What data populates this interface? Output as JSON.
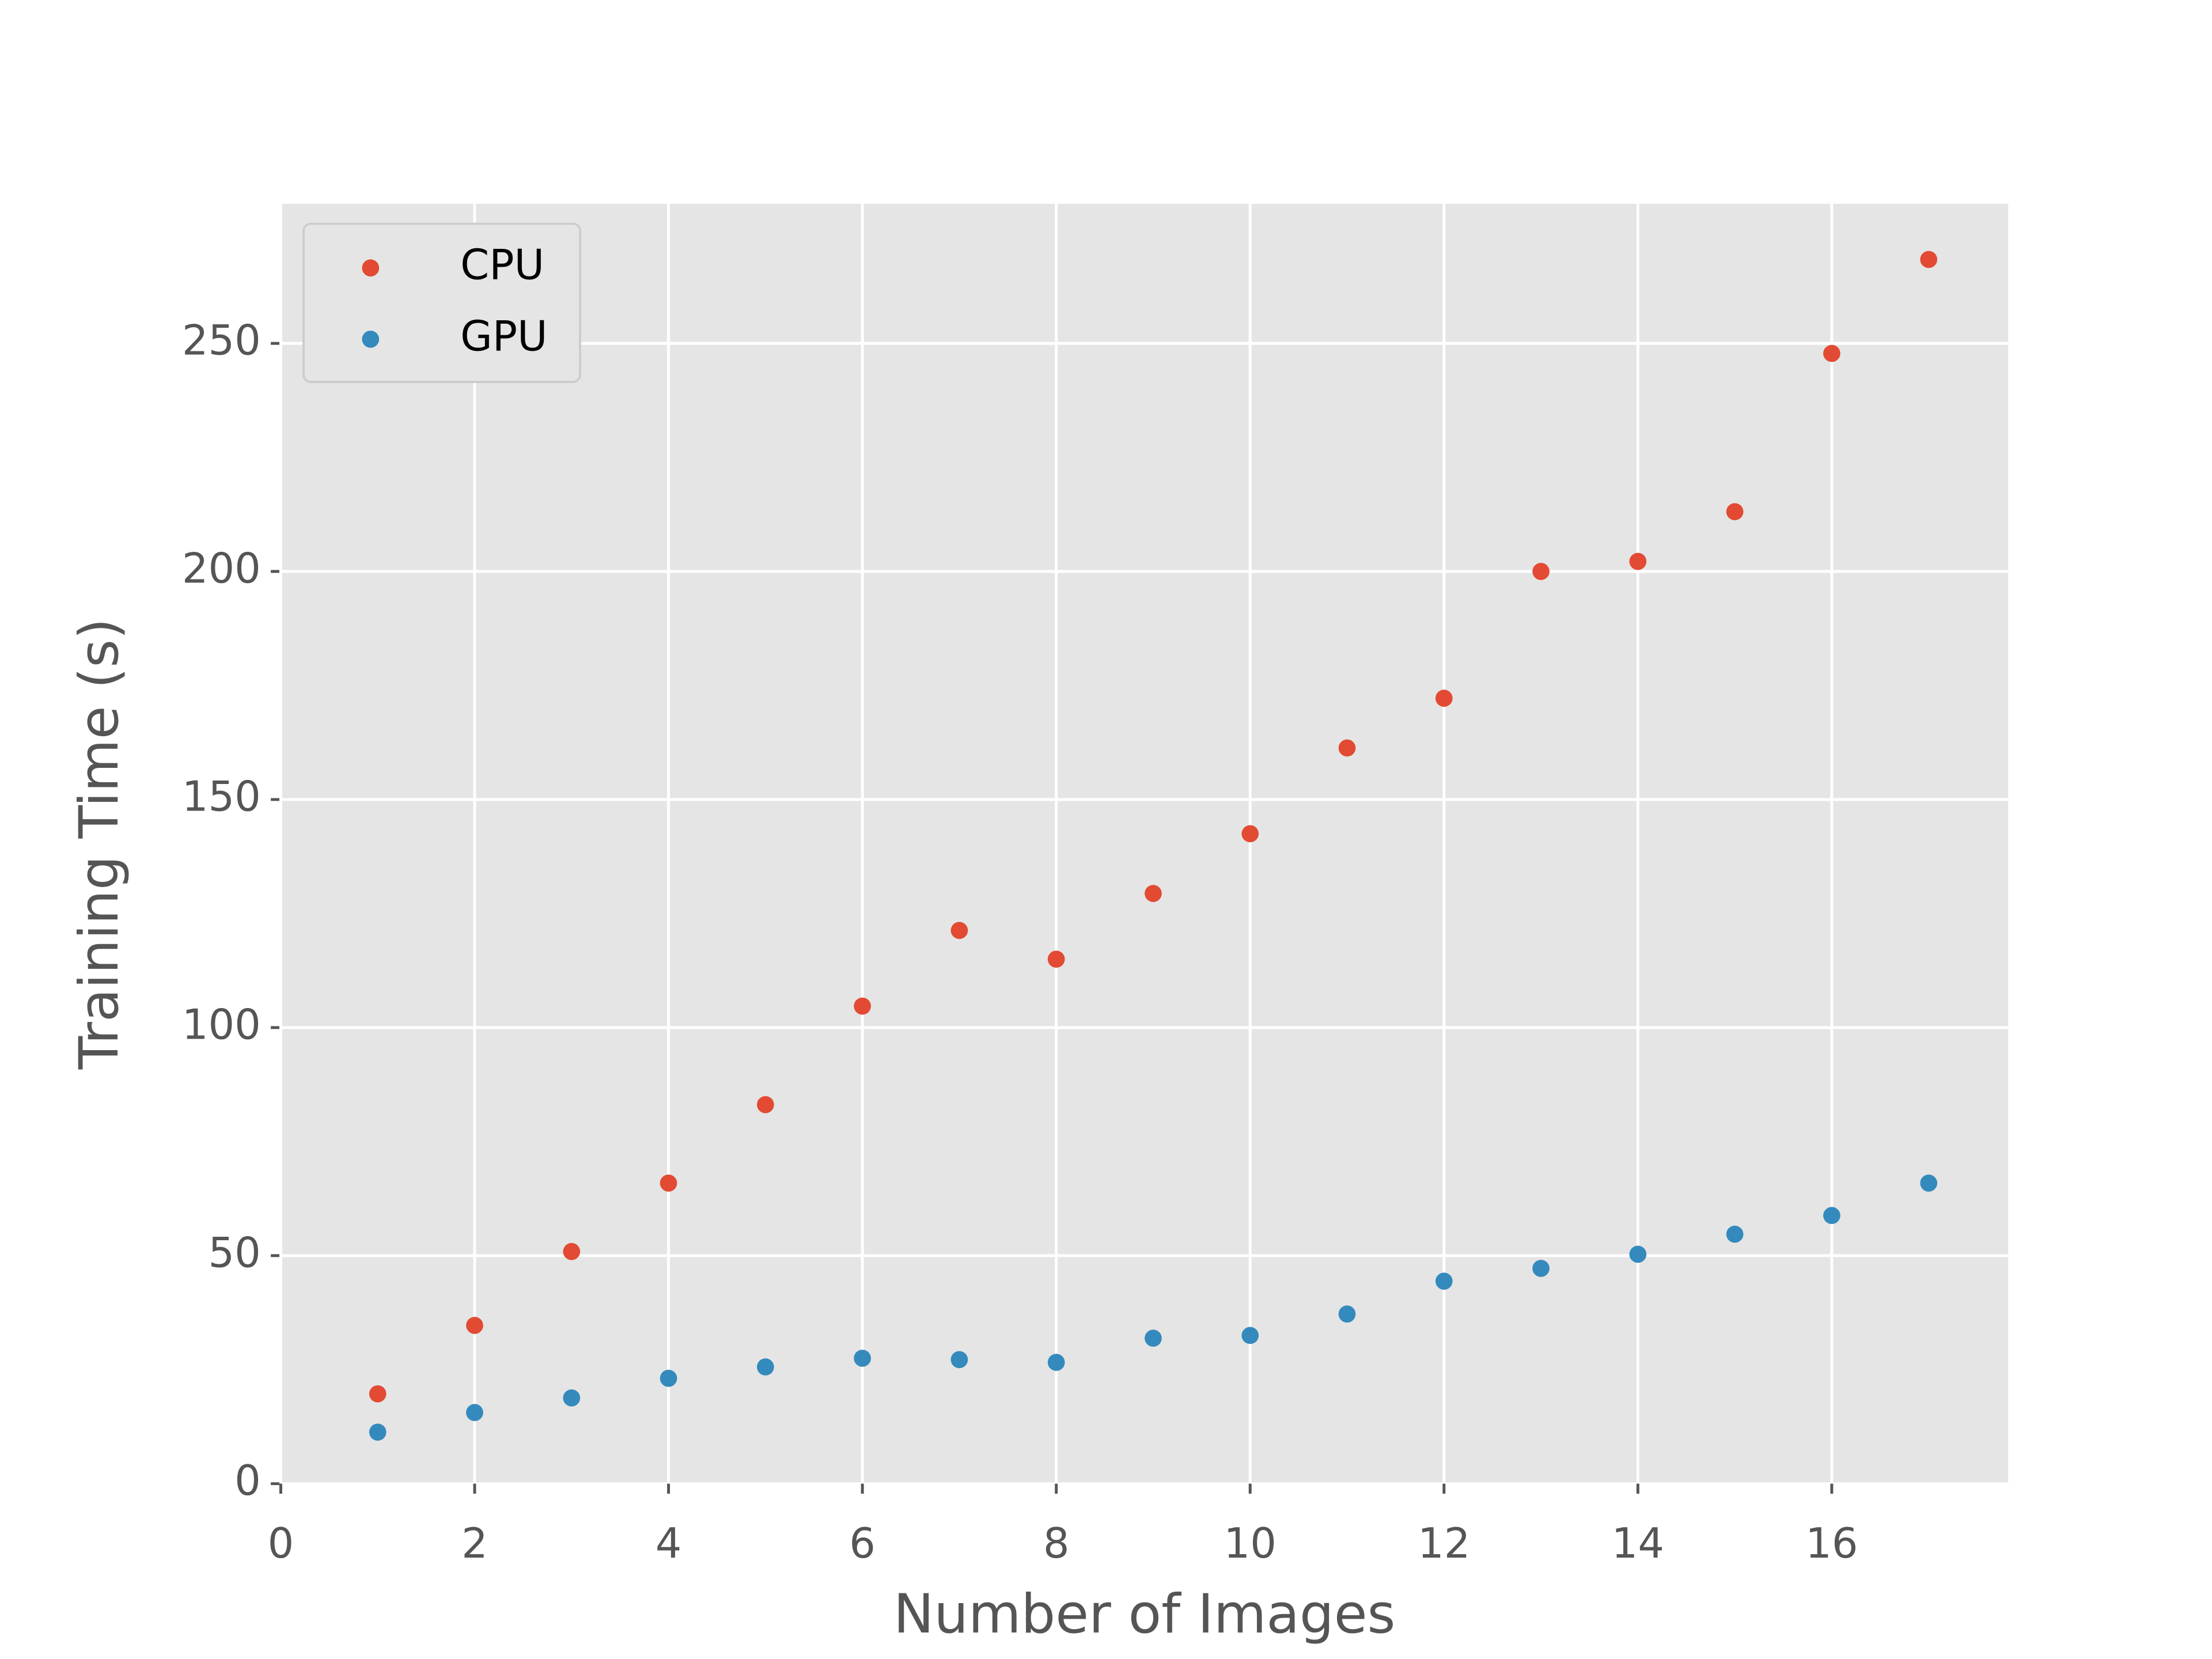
{
  "chart_data": {
    "type": "scatter",
    "x_label": "Number of Images",
    "y_label": "Training Time (s)",
    "x": [
      1,
      2,
      3,
      4,
      5,
      6,
      7,
      8,
      9,
      10,
      11,
      12,
      13,
      14,
      15,
      16,
      17
    ],
    "series": [
      {
        "name": "CPU",
        "color": "#E24A33",
        "values": [
          19.7,
          34.7,
          50.9,
          65.9,
          83.1,
          104.7,
          121.3,
          115,
          129.4,
          142.5,
          161.3,
          172.2,
          200,
          202.2,
          213.1,
          247.8,
          268.4
        ]
      },
      {
        "name": "GPU",
        "color": "#348ABD",
        "values": [
          11.3,
          15.6,
          18.8,
          23.1,
          25.6,
          27.5,
          27.2,
          26.6,
          31.9,
          32.5,
          37.2,
          44.4,
          47.2,
          50.3,
          54.7,
          58.8,
          65.9
        ]
      }
    ],
    "xlim": [
      0,
      17.82
    ],
    "ylim": [
      0,
      280.6
    ],
    "xticks": [
      0,
      2,
      4,
      6,
      8,
      10,
      12,
      14,
      16
    ],
    "yticks": [
      0,
      50,
      100,
      150,
      200,
      250
    ],
    "grid": true,
    "legend": "upper left",
    "background": "#E5E5E5"
  }
}
